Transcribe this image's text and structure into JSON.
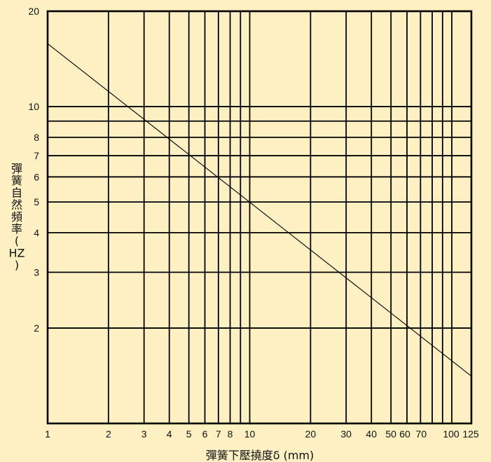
{
  "chart_data": {
    "type": "line",
    "title": "",
    "xlabel": "彈簧下壓撓度δ (mm)",
    "ylabel_chars": [
      "彈",
      "簧",
      "自",
      "然",
      "頻",
      "率",
      "(",
      "HZ",
      ")"
    ],
    "x_scale": "log",
    "y_scale": "log",
    "xlim": [
      1,
      125
    ],
    "ylim": [
      1,
      20
    ],
    "x_ticks": [
      1,
      2,
      3,
      4,
      5,
      6,
      7,
      8,
      9,
      10,
      20,
      30,
      40,
      50,
      60,
      70,
      100,
      125
    ],
    "x_tick_labels": [
      "1",
      "2",
      "3",
      "4",
      "5",
      "6",
      "7",
      "8",
      "",
      "10",
      "20",
      "30",
      "40",
      "50",
      "60",
      "70",
      "100",
      "125"
    ],
    "y_ticks": [
      2,
      3,
      4,
      5,
      6,
      7,
      8,
      9,
      10,
      20
    ],
    "y_tick_labels": [
      "2",
      "3",
      "4",
      "5",
      "6",
      "7",
      "8",
      "",
      "10",
      "20"
    ],
    "x_gridlines": [
      2,
      3,
      4,
      5,
      6,
      7,
      8,
      9,
      10,
      20,
      30,
      40,
      50,
      60,
      70,
      80,
      90,
      100
    ],
    "y_gridlines": [
      2,
      3,
      4,
      5,
      6,
      7,
      8,
      9,
      10
    ],
    "grid": true,
    "series": [
      {
        "x": [
          1,
          125
        ],
        "y": [
          15.8,
          1.41
        ]
      }
    ],
    "colors": {
      "background": "#fdf0c3",
      "grid": "#000000",
      "line": "#000000"
    }
  }
}
